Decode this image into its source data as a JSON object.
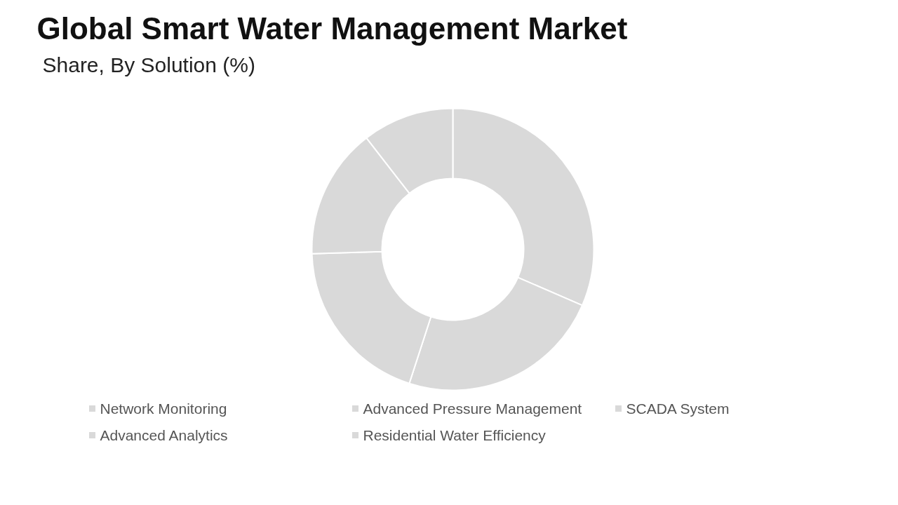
{
  "chart_data": {
    "type": "donut",
    "title": "Global Smart Water Management Market",
    "subtitle": "Share, By Solution (%)",
    "categories": [
      "Network Monitoring",
      "Advanced Pressure Management",
      "SCADA System",
      "Advanced Analytics",
      "Residential Water Efficiency"
    ],
    "values": [
      31.5,
      23.5,
      19.5,
      15,
      10.5
    ],
    "colors": [
      "#d9d9d9",
      "#d9d9d9",
      "#d9d9d9",
      "#d9d9d9",
      "#d9d9d9"
    ],
    "legend": "bottom"
  }
}
